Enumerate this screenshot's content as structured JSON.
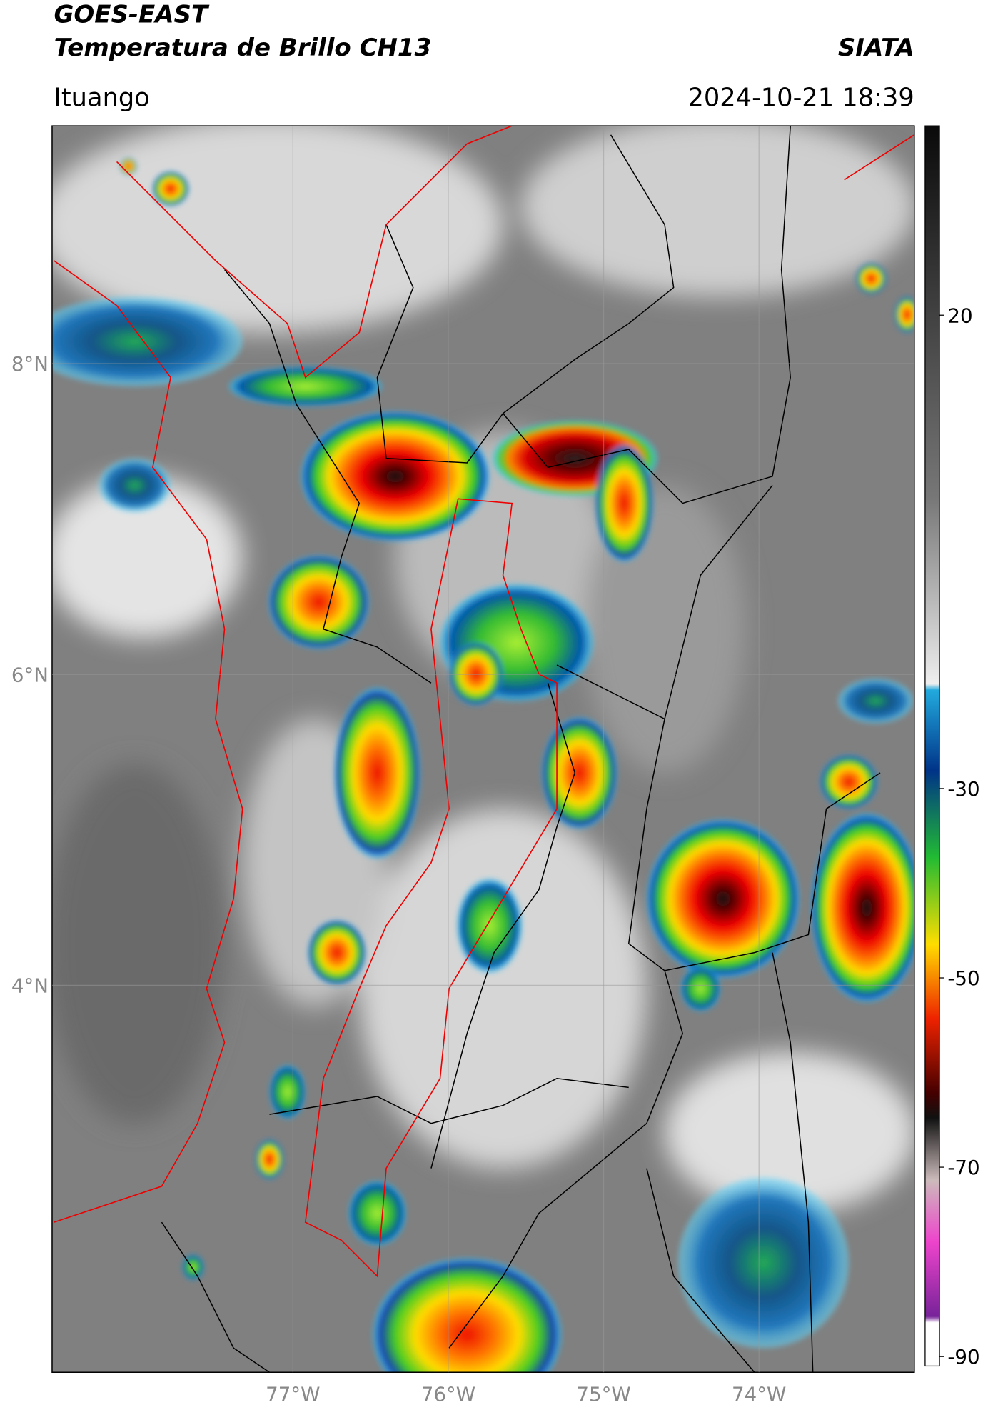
{
  "header": {
    "satellite": "GOES-EAST",
    "product": "Temperatura de Brillo CH13",
    "organization": "SIATA",
    "location": "Ituango",
    "datetime": "2024-10-21 18:39"
  },
  "map": {
    "lat_range": [
      1.51,
      9.53
    ],
    "lon_range": [
      -78.55,
      -73.0
    ],
    "latitudes": [
      {
        "value": 8,
        "label": "8°N"
      },
      {
        "value": 6,
        "label": "6°N"
      },
      {
        "value": 4,
        "label": "4°N"
      }
    ],
    "longitudes": [
      {
        "value": -77,
        "label": "77°W"
      },
      {
        "value": -76,
        "label": "76°W"
      },
      {
        "value": -75,
        "label": "75°W"
      },
      {
        "value": -74,
        "label": "74°W"
      }
    ]
  },
  "colorbar": {
    "range": [
      -91,
      40
    ],
    "ticks": [
      20,
      -30,
      -50,
      -70,
      -90
    ]
  }
}
